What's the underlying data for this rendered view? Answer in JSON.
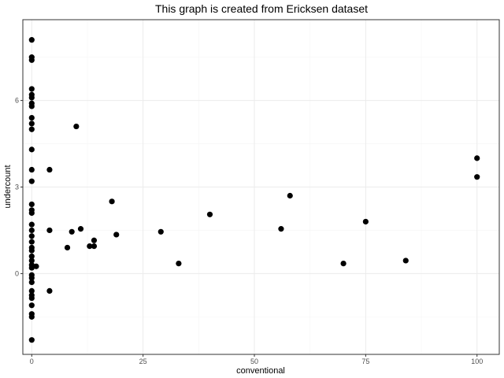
{
  "chart_data": {
    "type": "scatter",
    "title": "This graph is created from Ericksen dataset",
    "xlabel": "conventional",
    "ylabel": "undercount",
    "xlim": [
      -2,
      105
    ],
    "ylim": [
      -2.8,
      8.8
    ],
    "xticks": [
      0,
      25,
      50,
      75,
      100
    ],
    "yticks": [
      0,
      3,
      6
    ],
    "grid": true,
    "series": [
      {
        "points": [
          {
            "x": 0,
            "y": 8.1
          },
          {
            "x": 0,
            "y": 7.5
          },
          {
            "x": 0,
            "y": 7.4
          },
          {
            "x": 0,
            "y": 6.4
          },
          {
            "x": 0,
            "y": 6.2
          },
          {
            "x": 0,
            "y": 6.1
          },
          {
            "x": 0,
            "y": 5.9
          },
          {
            "x": 0,
            "y": 5.8
          },
          {
            "x": 0,
            "y": 5.4
          },
          {
            "x": 0,
            "y": 5.2
          },
          {
            "x": 0,
            "y": 5.0
          },
          {
            "x": 0,
            "y": 4.3
          },
          {
            "x": 0,
            "y": 3.6
          },
          {
            "x": 0,
            "y": 3.2
          },
          {
            "x": 0,
            "y": 2.4
          },
          {
            "x": 0,
            "y": 2.2
          },
          {
            "x": 0,
            "y": 2.1
          },
          {
            "x": 0,
            "y": 1.7
          },
          {
            "x": 0,
            "y": 1.5
          },
          {
            "x": 0,
            "y": 1.3
          },
          {
            "x": 0,
            "y": 1.1
          },
          {
            "x": 0,
            "y": 0.9
          },
          {
            "x": 0,
            "y": 0.8
          },
          {
            "x": 0,
            "y": 0.6
          },
          {
            "x": 0,
            "y": 0.45
          },
          {
            "x": 0,
            "y": 0.3
          },
          {
            "x": 0,
            "y": 0.2
          },
          {
            "x": 0,
            "y": -0.05
          },
          {
            "x": 0,
            "y": -0.15
          },
          {
            "x": 0,
            "y": -0.3
          },
          {
            "x": 0,
            "y": -0.6
          },
          {
            "x": 0,
            "y": -0.75
          },
          {
            "x": 0,
            "y": -0.85
          },
          {
            "x": 0,
            "y": -1.1
          },
          {
            "x": 0,
            "y": -1.4
          },
          {
            "x": 0,
            "y": -1.5
          },
          {
            "x": 0,
            "y": -2.3
          },
          {
            "x": 1,
            "y": 0.25
          },
          {
            "x": 4,
            "y": 3.6
          },
          {
            "x": 4,
            "y": 1.5
          },
          {
            "x": 4,
            "y": -0.6
          },
          {
            "x": 8,
            "y": 0.9
          },
          {
            "x": 9,
            "y": 1.45
          },
          {
            "x": 10,
            "y": 5.1
          },
          {
            "x": 11,
            "y": 1.55
          },
          {
            "x": 13,
            "y": 0.95
          },
          {
            "x": 14,
            "y": 0.95
          },
          {
            "x": 14,
            "y": 1.15
          },
          {
            "x": 18,
            "y": 2.5
          },
          {
            "x": 19,
            "y": 1.35
          },
          {
            "x": 29,
            "y": 1.45
          },
          {
            "x": 33,
            "y": 0.35
          },
          {
            "x": 40,
            "y": 2.05
          },
          {
            "x": 56,
            "y": 1.55
          },
          {
            "x": 58,
            "y": 2.7
          },
          {
            "x": 70,
            "y": 0.35
          },
          {
            "x": 75,
            "y": 1.8
          },
          {
            "x": 84,
            "y": 0.45
          },
          {
            "x": 100,
            "y": 4.0
          },
          {
            "x": 100,
            "y": 3.35
          }
        ]
      }
    ]
  }
}
